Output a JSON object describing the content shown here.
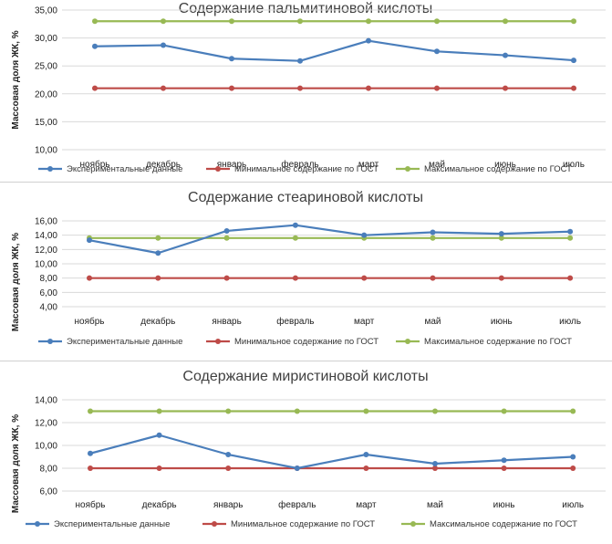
{
  "chart_data": [
    {
      "type": "line",
      "title": "Содержание пальмитиновой кислоты",
      "ylabel": "Массовая доля ЖК, %",
      "xlabel": "",
      "categories": [
        "ноябрь",
        "декабрь",
        "январь",
        "февраль",
        "март",
        "май",
        "июнь",
        "июль"
      ],
      "y_ticks": [
        "10,00",
        "15,00",
        "20,00",
        "25,00",
        "30,00",
        "35,00"
      ],
      "ylim": [
        10,
        35
      ],
      "grid": true,
      "legend_position": "bottom",
      "series": [
        {
          "name": "Экспериментальные данные",
          "color": "#4a7ebb",
          "values": [
            28.5,
            28.7,
            26.3,
            25.9,
            29.5,
            27.6,
            26.9,
            26.0
          ]
        },
        {
          "name": "Минимальное содержание по ГОСТ",
          "color": "#be4b48",
          "values": [
            21.0,
            21.0,
            21.0,
            21.0,
            21.0,
            21.0,
            21.0,
            21.0
          ]
        },
        {
          "name": "Максимальное содержание по ГОСТ",
          "color": "#98b954",
          "values": [
            33.0,
            33.0,
            33.0,
            33.0,
            33.0,
            33.0,
            33.0,
            33.0
          ]
        }
      ]
    },
    {
      "type": "line",
      "title": "Содержание стеариновой кислоты",
      "ylabel": "Массовая доля ЖК, %",
      "xlabel": "",
      "categories": [
        "ноябрь",
        "декабрь",
        "январь",
        "февраль",
        "март",
        "май",
        "июнь",
        "июль"
      ],
      "y_ticks": [
        "4,00",
        "6,00",
        "8,00",
        "10,00",
        "12,00",
        "14,00",
        "16,00"
      ],
      "ylim": [
        4,
        16
      ],
      "grid": true,
      "legend_position": "bottom",
      "series": [
        {
          "name": "Экспериментальные данные",
          "color": "#4a7ebb",
          "values": [
            13.3,
            11.5,
            14.6,
            15.4,
            14.0,
            14.4,
            14.2,
            14.5
          ]
        },
        {
          "name": "Минимальное содержание по ГОСТ",
          "color": "#be4b48",
          "values": [
            8.0,
            8.0,
            8.0,
            8.0,
            8.0,
            8.0,
            8.0,
            8.0
          ]
        },
        {
          "name": "Максимальное содержание по ГОСТ",
          "color": "#98b954",
          "values": [
            13.6,
            13.6,
            13.6,
            13.6,
            13.6,
            13.6,
            13.6,
            13.6
          ]
        }
      ]
    },
    {
      "type": "line",
      "title": "Содержание миристиновой кислоты",
      "ylabel": "Массовая доля ЖК, %",
      "xlabel": "",
      "categories": [
        "ноябрь",
        "декабрь",
        "январь",
        "февраль",
        "март",
        "май",
        "июнь",
        "июль"
      ],
      "y_ticks": [
        "6,00",
        "8,00",
        "10,00",
        "12,00",
        "14,00"
      ],
      "ylim": [
        6,
        14
      ],
      "grid": true,
      "legend_position": "bottom",
      "series": [
        {
          "name": "Экспериментальные данные",
          "color": "#4a7ebb",
          "values": [
            9.3,
            10.9,
            9.2,
            8.0,
            9.2,
            8.4,
            8.7,
            9.0
          ]
        },
        {
          "name": "Минимальное содержание по ГОСТ",
          "color": "#be4b48",
          "values": [
            8.0,
            8.0,
            8.0,
            8.0,
            8.0,
            8.0,
            8.0,
            8.0
          ]
        },
        {
          "name": "Максимальное содержание по ГОСТ",
          "color": "#98b954",
          "values": [
            13.0,
            13.0,
            13.0,
            13.0,
            13.0,
            13.0,
            13.0,
            13.0
          ]
        }
      ]
    }
  ]
}
